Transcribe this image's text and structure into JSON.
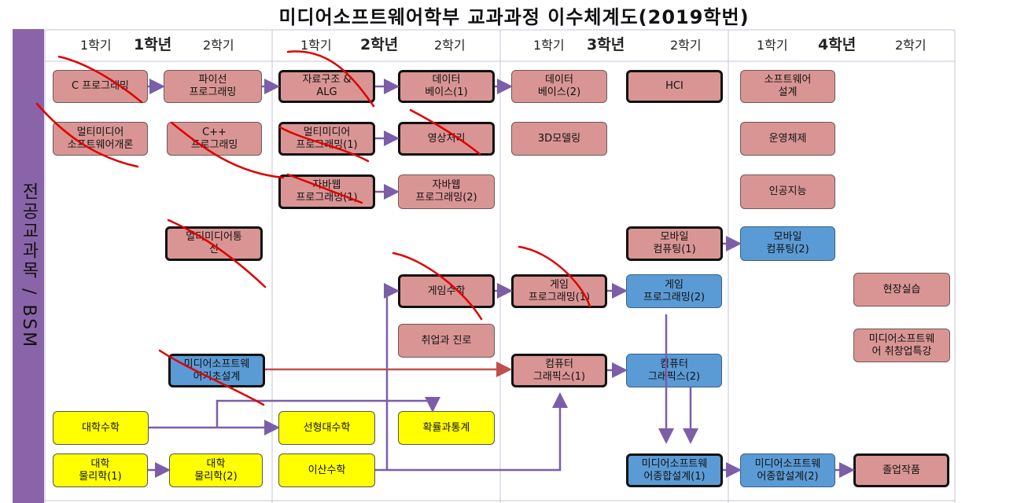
{
  "title": "미디어소프트웨어학부 교과과정 이수체계도(2019학번)",
  "sidebar_label": "전공교과목 / BSM",
  "headers": {
    "y1": {
      "year": "1학년",
      "s1": "1학기",
      "s2": "2학기"
    },
    "y2": {
      "year": "2학년",
      "s1": "1학기",
      "s2": "2학기"
    },
    "y3": {
      "year": "3학년",
      "s1": "1학기",
      "s2": "2학기"
    },
    "y4": {
      "year": "4학년",
      "s1": "1학기",
      "s2": "2학기"
    }
  },
  "colors": {
    "major": "#d99594",
    "major_blue": "#5b9bd5",
    "bsm": "#ffff00",
    "arrow": "#7b5ea7",
    "arrow_red": "#c0504d",
    "scribble": "#e00000"
  },
  "courses": {
    "c_prog": "C 프로그래밍",
    "python": "파이선\n프로그래밍",
    "ds_alg": "자료구조 &\nALG",
    "db1": "데이터\n베이스(1)",
    "db2": "데이터\n베이스(2)",
    "hci": "HCI",
    "sw_design": "소프트웨어\n설계",
    "mm_intro": "멀티미디어\n소프트웨어개론",
    "cpp": "C++\n프로그래밍",
    "mm_prog": "멀티미디어\n프로그래밍(1)",
    "image_proc": "영상처리",
    "modeling3d": "3D모델링",
    "os": "운영체제",
    "java1": "자바웹\n프로그래밍(1)",
    "java2": "자바웹\n프로그래밍(2)",
    "ai": "인공지능",
    "mm_comm": "멀티미디어통\n신",
    "mobile1": "모바일\n컴퓨팅(1)",
    "mobile2": "모바일\n컴퓨팅(2)",
    "game_math": "게임수학",
    "game1": "게임\n프로그래밍(1)",
    "game2": "게임\n프로그래밍(2)",
    "intern": "현장실습",
    "career": "취업과 진로",
    "startup": "미디어소프트웨\n어 취창업특강",
    "basic_design": "미디어소프트웨\n어기초설계",
    "graphics1": "컴퓨터\n그래픽스(1)",
    "graphics2": "컴퓨터\n그래픽스(2)",
    "calculus": "대학수학",
    "linear": "선형대수학",
    "prob": "확률과통계",
    "physics1": "대학\n물리학(1)",
    "physics2": "대학\n물리학(2)",
    "discrete": "이산수학",
    "capstone1": "미디어소프트웨\n어종합설계(1)",
    "capstone2": "미디어소프트웨\n어종합설계(2)",
    "graduation": "졸업작품"
  }
}
